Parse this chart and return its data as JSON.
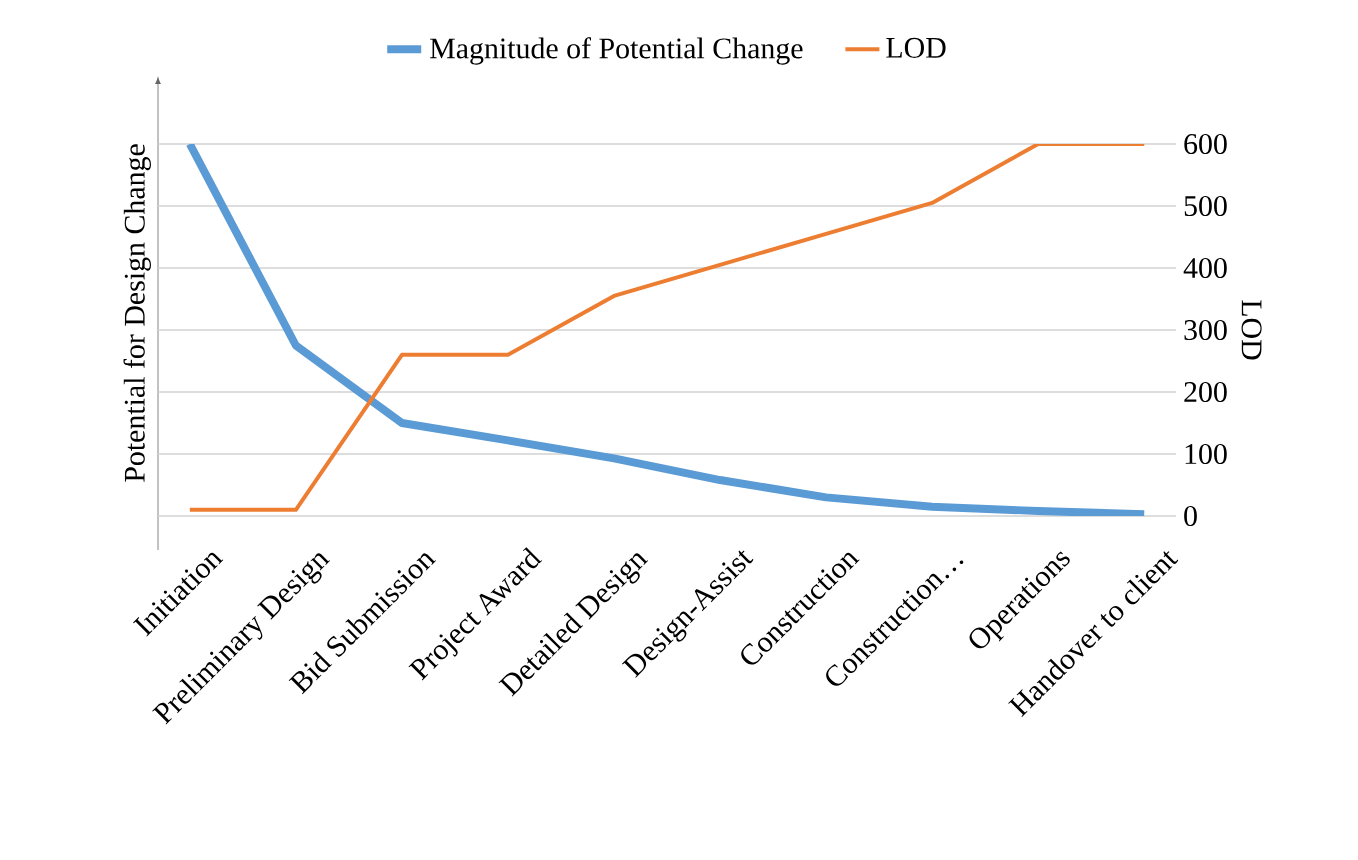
{
  "chart_data": {
    "type": "line",
    "ylabel": "Potential for Design Change",
    "y2label": "LOD",
    "categories": [
      "Initiation",
      "Preliminary Design",
      "Bid Submission",
      "Project Award",
      "Detailed Design",
      "Design-Assist",
      "Construction",
      "Construction…",
      "Operations",
      "Handover to client"
    ],
    "series": [
      {
        "name": "Magnitude of Potential Change",
        "color": "#5b9bd5",
        "axis": "y2",
        "values": [
          600,
          275,
          150,
          122,
          93,
          58,
          30,
          15,
          8,
          3
        ]
      },
      {
        "name": "LOD",
        "color": "#ed7d31",
        "axis": "y2",
        "values": [
          10,
          10,
          260,
          260,
          355,
          405,
          455,
          505,
          600,
          600
        ]
      }
    ],
    "y2lim": [
      0,
      600
    ],
    "y2ticks": [
      0,
      100,
      200,
      300,
      400,
      500,
      600
    ],
    "grid": "y",
    "legend": "top",
    "marker": "none",
    "line_style": "solid"
  }
}
